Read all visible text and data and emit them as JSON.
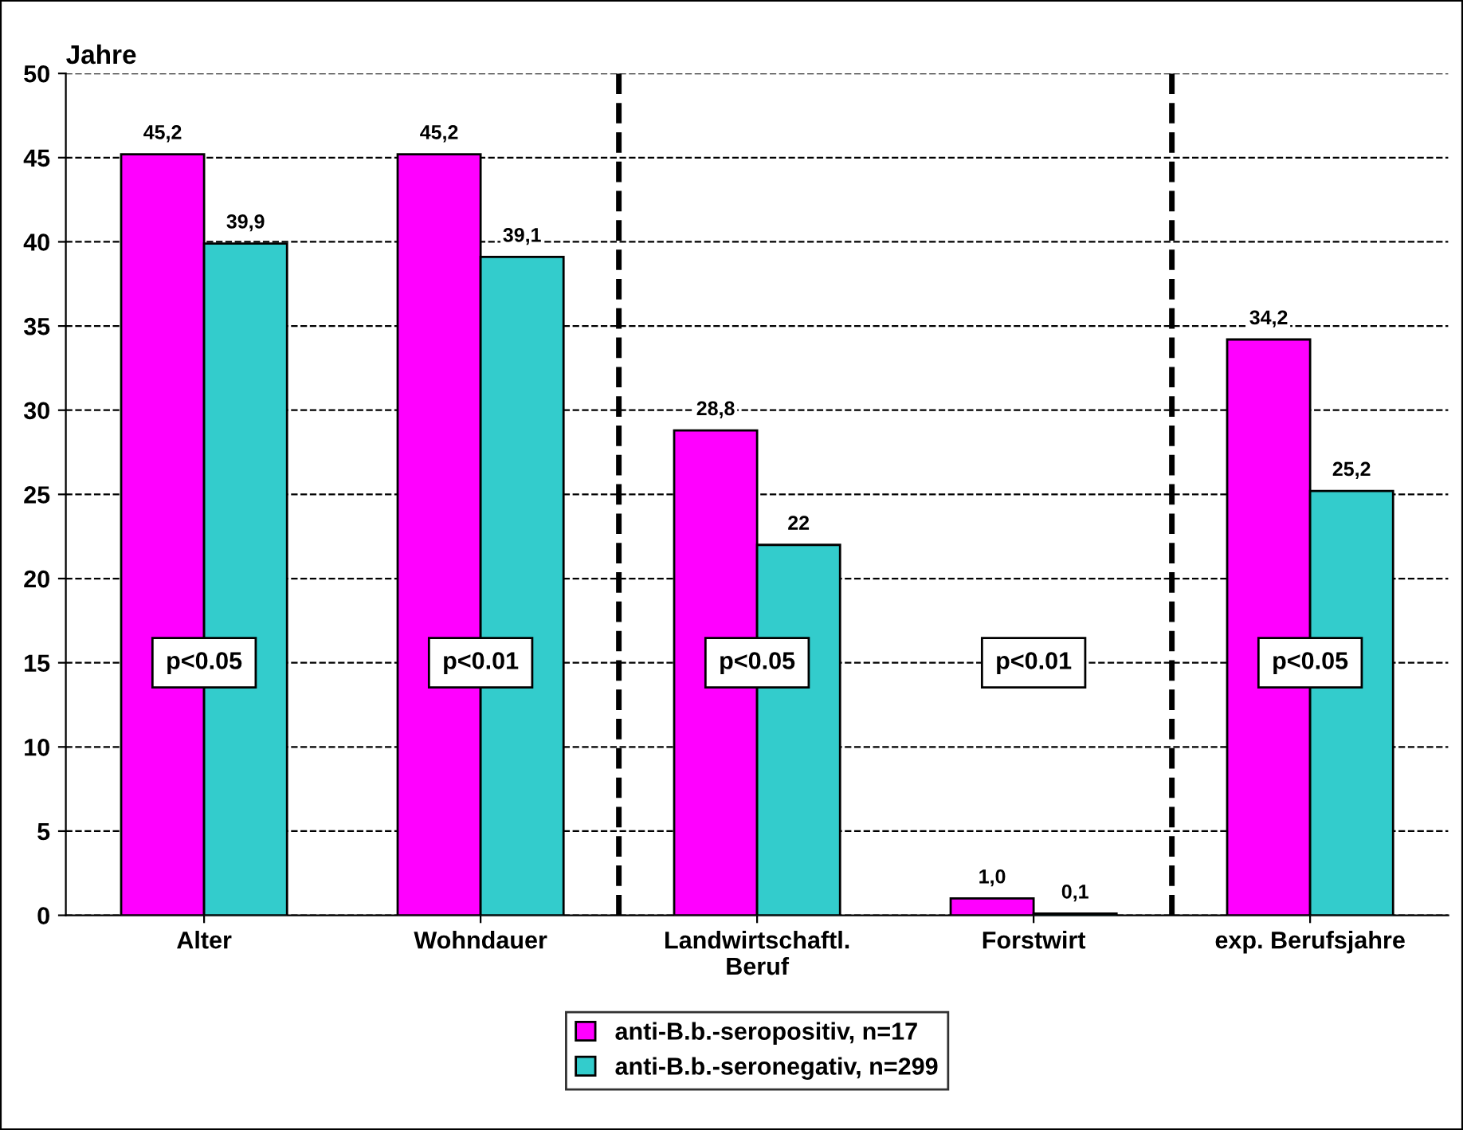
{
  "chart_data": {
    "type": "bar",
    "ylabel": "Jahre",
    "categories": [
      "Alter",
      "Wohndauer",
      "Landwirtschaftl.\nBeruf",
      "Forstwirt",
      "exp. Berufsjahre"
    ],
    "series": [
      {
        "name": "anti-B.b.-seropositiv, n=17",
        "color": "#ff00ff",
        "values": [
          45.2,
          45.2,
          28.8,
          1.0,
          34.2
        ],
        "value_labels": [
          "45,2",
          "45,2",
          "28,8",
          "1,0",
          "34,2"
        ]
      },
      {
        "name": "anti-B.b.-seronegativ, n=299",
        "color": "#33cccc",
        "values": [
          39.9,
          39.1,
          22,
          0.1,
          25.2
        ],
        "value_labels": [
          "39,9",
          "39,1",
          "22",
          "0,1",
          "25,2"
        ]
      }
    ],
    "ylim": [
      0,
      50
    ],
    "yticks": [
      0,
      5,
      10,
      15,
      20,
      25,
      30,
      35,
      40,
      45,
      50
    ],
    "grid": "y",
    "legend": "bottom",
    "annotations": [
      "p<0.05",
      "p<0.01",
      "p<0.05",
      "p<0.01",
      "p<0.05"
    ]
  }
}
